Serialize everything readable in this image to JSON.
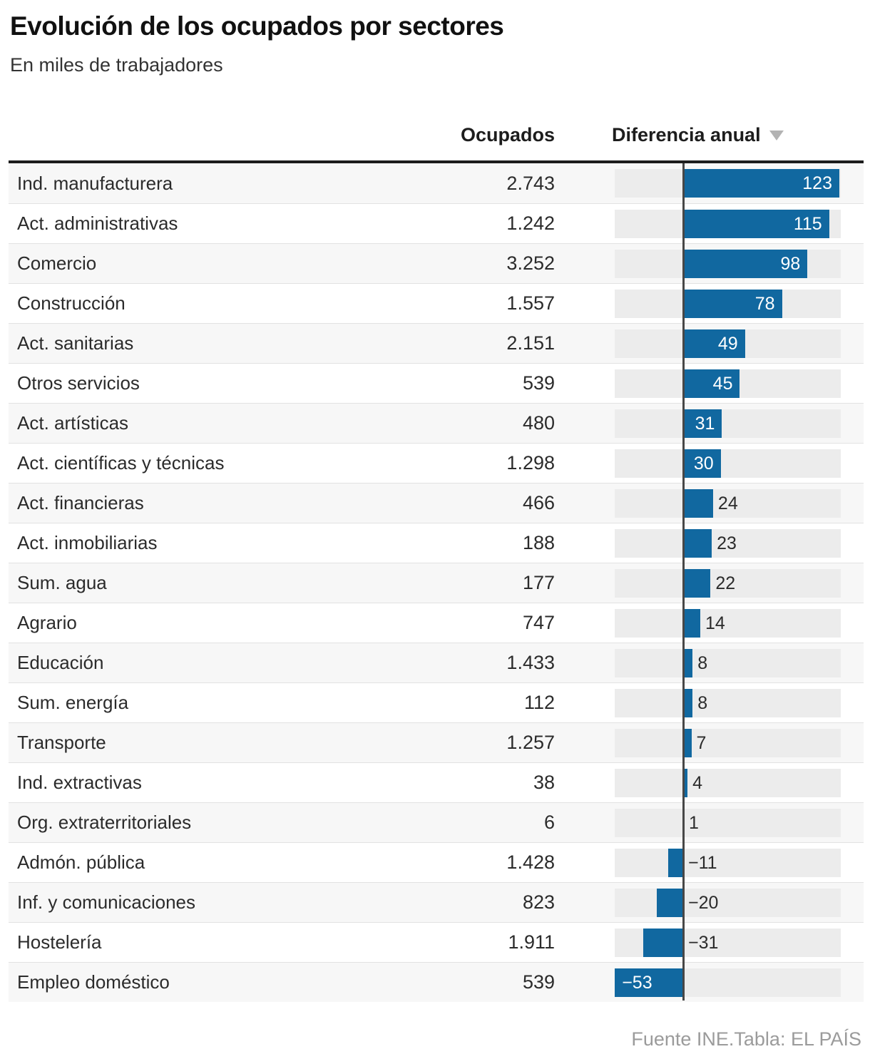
{
  "header": {
    "title": "Evolución de los ocupados por sectores",
    "subtitle": "En miles de trabajadores"
  },
  "table": {
    "columns": {
      "ocupados": "Ocupados",
      "diferencia": "Diferencia anual"
    },
    "sort_indicator": "descending-triangle"
  },
  "footer": {
    "source": "Fuente INE.Tabla: EL PAÍS"
  },
  "colors": {
    "bar_blue": "#1168a0",
    "track_gray": "#ececec",
    "row_alt_bg": "#f7f7f7",
    "zero_line": "#474747",
    "header_rule": "#1d1d1d",
    "muted_text": "#9b9b9b"
  },
  "chart_data": {
    "type": "bar",
    "orientation": "horizontal",
    "title": "Evolución de los ocupados por sectores",
    "subtitle": "En miles de trabajadores",
    "value_column": "Diferencia anual",
    "units": "miles de trabajadores",
    "x_range": [
      -53,
      123
    ],
    "sorted_by": "diferencia_desc",
    "rows": [
      {
        "sector": "Ind. manufacturera",
        "ocupados": "2.743",
        "diferencia": 123
      },
      {
        "sector": "Act. administrativas",
        "ocupados": "1.242",
        "diferencia": 115
      },
      {
        "sector": "Comercio",
        "ocupados": "3.252",
        "diferencia": 98
      },
      {
        "sector": "Construcción",
        "ocupados": "1.557",
        "diferencia": 78
      },
      {
        "sector": "Act. sanitarias",
        "ocupados": "2.151",
        "diferencia": 49
      },
      {
        "sector": "Otros servicios",
        "ocupados": "539",
        "diferencia": 45
      },
      {
        "sector": "Act. artísticas",
        "ocupados": "480",
        "diferencia": 31
      },
      {
        "sector": "Act. científicas y técnicas",
        "ocupados": "1.298",
        "diferencia": 30
      },
      {
        "sector": "Act. financieras",
        "ocupados": "466",
        "diferencia": 24
      },
      {
        "sector": "Act. inmobiliarias",
        "ocupados": "188",
        "diferencia": 23
      },
      {
        "sector": "Sum. agua",
        "ocupados": "177",
        "diferencia": 22
      },
      {
        "sector": "Agrario",
        "ocupados": "747",
        "diferencia": 14
      },
      {
        "sector": "Educación",
        "ocupados": "1.433",
        "diferencia": 8
      },
      {
        "sector": "Sum. energía",
        "ocupados": "112",
        "diferencia": 8
      },
      {
        "sector": "Transporte",
        "ocupados": "1.257",
        "diferencia": 7
      },
      {
        "sector": "Ind. extractivas",
        "ocupados": "38",
        "diferencia": 4
      },
      {
        "sector": "Org. extraterritoriales",
        "ocupados": "6",
        "diferencia": 1
      },
      {
        "sector": "Admón. pública",
        "ocupados": "1.428",
        "diferencia": -11
      },
      {
        "sector": "Inf. y comunicaciones",
        "ocupados": "823",
        "diferencia": -20
      },
      {
        "sector": "Hostelería",
        "ocupados": "1.911",
        "diferencia": -31
      },
      {
        "sector": "Empleo doméstico",
        "ocupados": "539",
        "diferencia": -53
      }
    ]
  }
}
